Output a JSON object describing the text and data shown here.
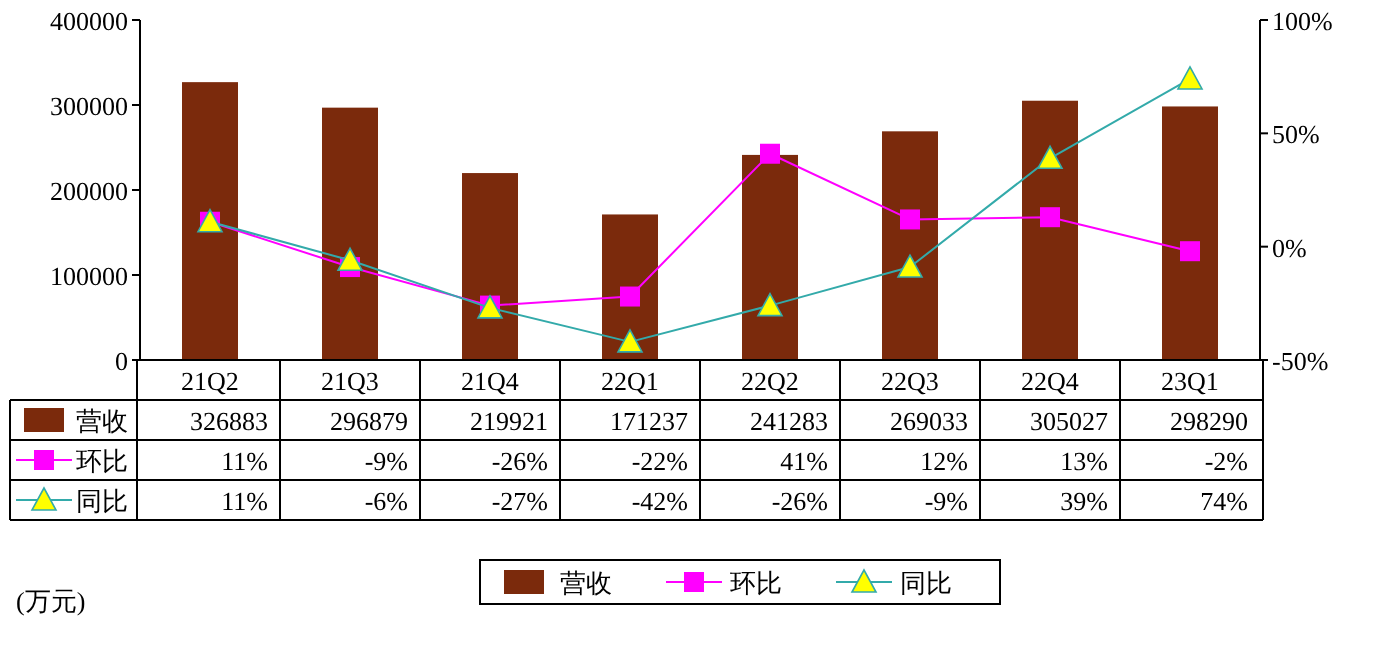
{
  "chart_data": {
    "type": "bar",
    "categories": [
      "21Q2",
      "21Q3",
      "21Q4",
      "22Q1",
      "22Q2",
      "22Q3",
      "22Q4",
      "23Q1"
    ],
    "series": [
      {
        "name": "营收",
        "color": "#7b2a0c",
        "values": [
          326883,
          296879,
          219921,
          171237,
          241283,
          269033,
          305027,
          298290
        ],
        "value_labels": [
          "326883",
          "296879",
          "219921",
          "171237",
          "241283",
          "269033",
          "305027",
          "298290"
        ]
      },
      {
        "name": "环比",
        "type": "line",
        "axis": "y2",
        "color": "#ff00ff",
        "marker": "square",
        "values": [
          11,
          -9,
          -26,
          -22,
          41,
          12,
          13,
          -2
        ],
        "value_labels": [
          "11%",
          "-9%",
          "-26%",
          "-22%",
          "41%",
          "12%",
          "13%",
          "-2%"
        ]
      },
      {
        "name": "同比",
        "type": "line",
        "axis": "y2",
        "color": "#33aaaa",
        "marker": "triangle",
        "values": [
          11,
          -6,
          -27,
          -42,
          -26,
          -9,
          39,
          74
        ],
        "value_labels": [
          "11%",
          "-6%",
          "-27%",
          "-42%",
          "-26%",
          "-9%",
          "39%",
          "74%"
        ]
      }
    ],
    "ylim": [
      0,
      400000
    ],
    "yticks": [
      0,
      100000,
      200000,
      300000,
      400000
    ],
    "y2lim": [
      -50,
      100
    ],
    "y2ticks": [
      {
        "value": -50,
        "label": "-50%"
      },
      {
        "value": 0,
        "label": "0%"
      },
      {
        "value": 50,
        "label": "50%"
      },
      {
        "value": 100,
        "label": "100%"
      }
    ],
    "legend": "bottom",
    "annotations": [
      "(万元)"
    ]
  }
}
